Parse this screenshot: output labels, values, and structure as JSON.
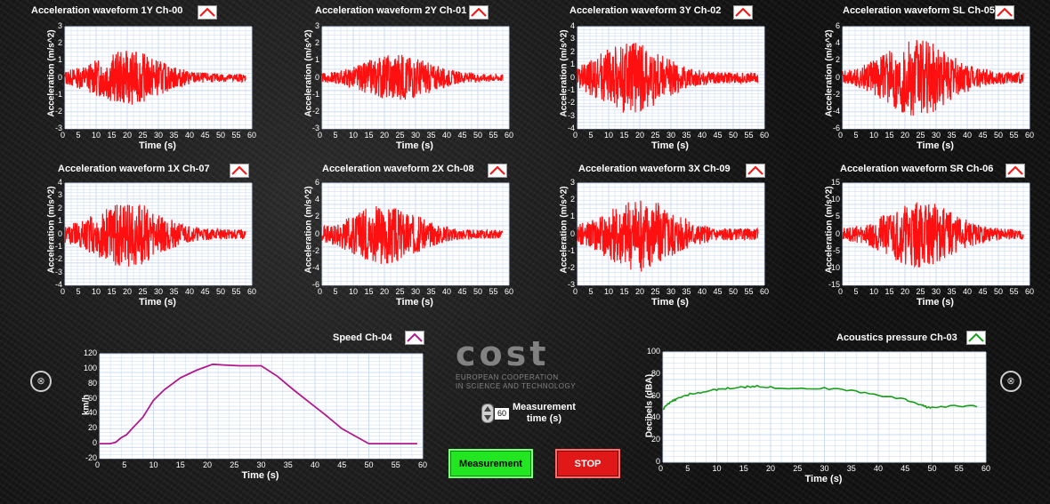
{
  "colors": {
    "accel_trace": "#ff1010",
    "speed_trace": "#b0198c",
    "acoustic_trace": "#1a9e1a",
    "grid": "#c8d8f0",
    "measurement_button": "#22e622",
    "stop_button": "#e01818"
  },
  "accel_panels": [
    {
      "title": "Acceleration waveform  1Y  Ch-00",
      "ylabel": "Acceleration  (m/s^2)",
      "xlabel": "Time (s)",
      "ylim": [
        -3,
        3
      ],
      "yticks": [
        "3",
        "2",
        "1",
        "0",
        "-1",
        "-2",
        "-3"
      ],
      "amp": 1.6,
      "peak_at": 20
    },
    {
      "title": "Acceleration waveform  2Y  Ch-01",
      "ylabel": "Acceleration  (m/s^2)",
      "xlabel": "Time (s)",
      "ylim": [
        -3,
        3
      ],
      "yticks": [
        "3",
        "2",
        "1",
        "0",
        "-1",
        "-2",
        "-3"
      ],
      "amp": 1.4,
      "peak_at": 24
    },
    {
      "title": "Acceleration waveform  3Y  Ch-02",
      "ylabel": "Acceleration  (m/s^2)",
      "xlabel": "Time (s)",
      "ylim": [
        -4,
        4
      ],
      "yticks": [
        "4",
        "3",
        "2",
        "1",
        "0",
        "-1",
        "-2",
        "-3",
        "-4"
      ],
      "amp": 2.8,
      "peak_at": 17
    },
    {
      "title": "Acceleration waveform  SL  Ch-05",
      "ylabel": "Acceleration  (m/s^2)",
      "xlabel": "Time (s)",
      "ylim": [
        -6,
        6
      ],
      "yticks": [
        "6",
        "4",
        "2",
        "0",
        "-2",
        "-4",
        "-6"
      ],
      "amp": 4.5,
      "peak_at": 24
    },
    {
      "title": "Acceleration waveform  1X   Ch-07",
      "ylabel": "Acceleration  (m/s^2)",
      "xlabel": "Time (s)",
      "ylim": [
        -4,
        4
      ],
      "yticks": [
        "4",
        "3",
        "2",
        "1",
        "0",
        "-1",
        "-2",
        "-3",
        "-4"
      ],
      "amp": 2.6,
      "peak_at": 20
    },
    {
      "title": "Acceleration waveform  2X  Ch-08",
      "ylabel": "Acceleration  (m/s^2)",
      "xlabel": "Time (s)",
      "ylim": [
        -6,
        6
      ],
      "yticks": [
        "6",
        "4",
        "2",
        "0",
        "-2",
        "-4",
        "-6"
      ],
      "amp": 3.5,
      "peak_at": 20
    },
    {
      "title": "Acceleration waveform  3X  Ch-09",
      "ylabel": "Acceleration  (m/s^2)",
      "xlabel": "Time (s)",
      "ylim": [
        -3,
        3
      ],
      "yticks": [
        "3",
        "2",
        "1",
        "0",
        "-1",
        "-2",
        "-3"
      ],
      "amp": 2.2,
      "peak_at": 20
    },
    {
      "title": "Acceleration waveform  SR  Ch-06",
      "ylabel": "Acceleration  (m/s^2)",
      "xlabel": "Time (s)",
      "ylim": [
        -15,
        15
      ],
      "yticks": [
        "15",
        "10",
        "5",
        "0",
        "-5",
        "-10",
        "-15"
      ],
      "amp": 10,
      "peak_at": 25
    }
  ],
  "xticks": [
    "0",
    "5",
    "10",
    "15",
    "20",
    "25",
    "30",
    "35",
    "40",
    "45",
    "50",
    "55",
    "60"
  ],
  "speed": {
    "title": "Speed  Ch-04",
    "ylabel": "km/h",
    "xlabel": "Time (s)",
    "ylim": [
      -20,
      120
    ],
    "yticks": [
      "120",
      "100",
      "80",
      "60",
      "40",
      "20",
      "0",
      "-20"
    ],
    "points": [
      [
        0,
        0
      ],
      [
        2,
        0
      ],
      [
        3,
        2
      ],
      [
        4,
        8
      ],
      [
        5,
        12
      ],
      [
        6,
        20
      ],
      [
        8,
        35
      ],
      [
        10,
        58
      ],
      [
        12,
        72
      ],
      [
        15,
        88
      ],
      [
        18,
        98
      ],
      [
        21,
        106
      ],
      [
        23,
        105
      ],
      [
        26,
        104
      ],
      [
        30,
        104
      ],
      [
        33,
        90
      ],
      [
        36,
        72
      ],
      [
        39,
        55
      ],
      [
        42,
        38
      ],
      [
        45,
        20
      ],
      [
        48,
        8
      ],
      [
        50,
        0
      ],
      [
        55,
        0
      ],
      [
        59,
        0
      ]
    ]
  },
  "acoustic": {
    "title": "Acoustics pressure  Ch-03",
    "ylabel": "Decibels  (dBA)",
    "xlabel": "Time (s)",
    "ylim": [
      0,
      100
    ],
    "yticks": [
      "100",
      "80",
      "60",
      "40",
      "20",
      "0"
    ],
    "points": [
      [
        0,
        48
      ],
      [
        1,
        53
      ],
      [
        2,
        56
      ],
      [
        3,
        58
      ],
      [
        5,
        62
      ],
      [
        8,
        64
      ],
      [
        10,
        66
      ],
      [
        12,
        67
      ],
      [
        15,
        68
      ],
      [
        17,
        69
      ],
      [
        20,
        68
      ],
      [
        25,
        67
      ],
      [
        30,
        67
      ],
      [
        35,
        65
      ],
      [
        40,
        61
      ],
      [
        45,
        57
      ],
      [
        48,
        52
      ],
      [
        49,
        50
      ],
      [
        50,
        50
      ],
      [
        55,
        51
      ],
      [
        59,
        51
      ]
    ]
  },
  "measurement_time": {
    "value": "60",
    "label": "Measurement\ntime (s)"
  },
  "buttons": {
    "measurement": "Measurement",
    "stop": "STOP"
  },
  "logo": {
    "name": "cost",
    "line1": "EUROPEAN COOPERATION",
    "line2": "IN SCIENCE AND TECHNOLOGY"
  }
}
